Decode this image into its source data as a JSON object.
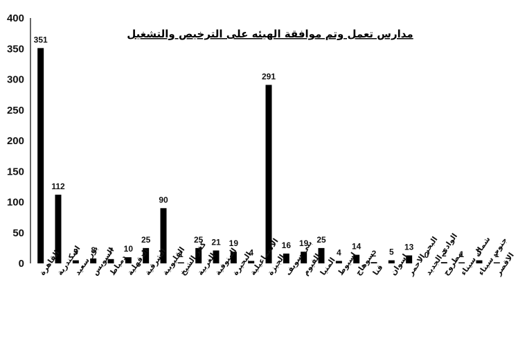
{
  "chart_data": {
    "type": "bar",
    "title": "مدارس تعمل وتم موافقة الهيئه على الترخيص والتشغيل",
    "xlabel": "",
    "ylabel": "",
    "ylim": [
      0,
      400
    ],
    "yticks": [
      0,
      50,
      100,
      150,
      200,
      250,
      300,
      350,
      400
    ],
    "grid": false,
    "legend": "none",
    "bar_color": "#000000",
    "categories": [
      "القاهرة",
      "اسكندرية",
      "بور سعيد",
      "السويس",
      "دمياط",
      "الدقهلية",
      "الشرقية",
      "القليوبية",
      "كفر الشيخ",
      "الغربية",
      "المنوفية",
      "البحيرة",
      "الاسماعيلية",
      "الجيزة",
      "بنى سويف",
      "الفيوم",
      "المنيا",
      "اسيوط",
      "سوهاج",
      "قنا",
      "اسوان",
      "البحر الاحمر",
      "الوادى الجديد",
      "مطروح",
      "شمال سيناء",
      "جنوب سيناء",
      "الاقصر"
    ],
    "values": [
      351,
      112,
      5,
      8,
      7,
      10,
      25,
      90,
      1,
      25,
      21,
      19,
      4,
      291,
      16,
      19,
      25,
      4,
      14,
      2,
      5,
      13,
      0,
      2,
      1,
      5,
      1
    ]
  }
}
